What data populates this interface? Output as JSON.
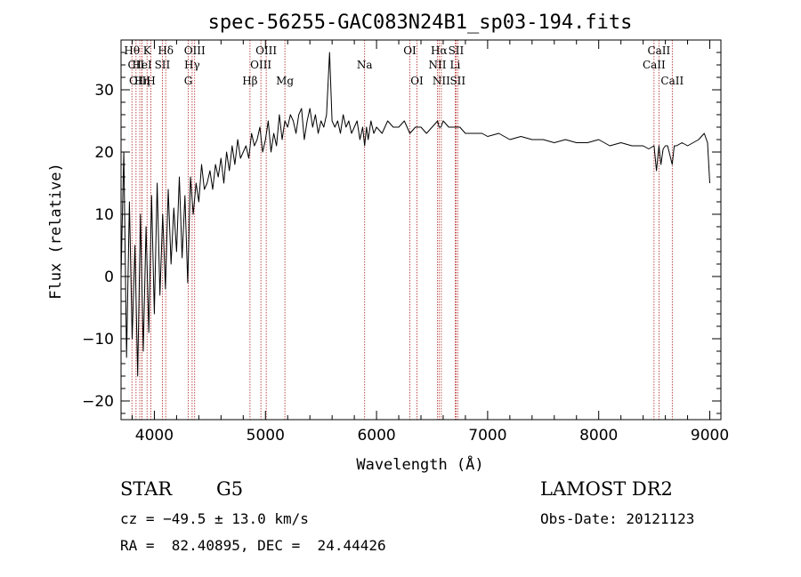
{
  "chart_data": {
    "type": "line",
    "title": "spec-56255-GAC083N24B1_sp03-194.fits",
    "xlabel": "Wavelength (Å)",
    "ylabel": "Flux (relative)",
    "xlim": [
      3700,
      9100
    ],
    "ylim": [
      -23,
      38
    ],
    "xticks": [
      4000,
      5000,
      6000,
      7000,
      8000,
      9000
    ],
    "yticks": [
      -20,
      -10,
      0,
      10,
      20,
      30
    ],
    "series": [
      {
        "name": "flux",
        "x": [
          3700,
          3725,
          3750,
          3775,
          3800,
          3825,
          3850,
          3875,
          3900,
          3925,
          3950,
          3975,
          4000,
          4025,
          4050,
          4075,
          4100,
          4125,
          4150,
          4175,
          4200,
          4225,
          4250,
          4275,
          4300,
          4325,
          4350,
          4375,
          4400,
          4425,
          4450,
          4475,
          4500,
          4525,
          4550,
          4575,
          4600,
          4625,
          4650,
          4675,
          4700,
          4725,
          4750,
          4775,
          4800,
          4825,
          4850,
          4875,
          4900,
          4925,
          4950,
          4975,
          5000,
          5025,
          5050,
          5075,
          5100,
          5125,
          5150,
          5175,
          5200,
          5225,
          5250,
          5275,
          5300,
          5325,
          5350,
          5375,
          5400,
          5425,
          5450,
          5475,
          5500,
          5525,
          5550,
          5577,
          5600,
          5625,
          5650,
          5675,
          5700,
          5725,
          5750,
          5775,
          5800,
          5825,
          5850,
          5875,
          5893,
          5910,
          5925,
          5950,
          5975,
          6000,
          6050,
          6100,
          6150,
          6200,
          6250,
          6300,
          6350,
          6400,
          6450,
          6500,
          6550,
          6563,
          6580,
          6600,
          6650,
          6700,
          6750,
          6800,
          6850,
          6900,
          6950,
          7000,
          7100,
          7200,
          7300,
          7400,
          7500,
          7600,
          7700,
          7800,
          7900,
          8000,
          8100,
          8200,
          8300,
          8400,
          8450,
          8498,
          8520,
          8542,
          8560,
          8580,
          8600,
          8620,
          8662,
          8680,
          8700,
          8750,
          8800,
          8850,
          8900,
          8950,
          8980,
          9000
        ],
        "values": [
          0,
          20,
          -13,
          12,
          -10,
          5,
          -16,
          10,
          -12,
          8,
          -9,
          13,
          -6,
          15,
          -3,
          10,
          -2,
          14,
          2,
          11,
          4,
          16,
          3,
          13,
          -1,
          16,
          10,
          15,
          12,
          18,
          14,
          15,
          17,
          14,
          18,
          16,
          19,
          15,
          20,
          17,
          21,
          18,
          22,
          19,
          20,
          21,
          19,
          23,
          21,
          22,
          24,
          20,
          22,
          25,
          20,
          23,
          21,
          26,
          22,
          25,
          24,
          26,
          25,
          23,
          26,
          27,
          22,
          25,
          27,
          24,
          26,
          23,
          25,
          24,
          26,
          36,
          25,
          24,
          25,
          23,
          26,
          24,
          25,
          23,
          24,
          25,
          22,
          24,
          21,
          24,
          22,
          25,
          23,
          24,
          23,
          25,
          24,
          24,
          25,
          23,
          24,
          24,
          23,
          24,
          25,
          24,
          24,
          25,
          24,
          24,
          24,
          23,
          23,
          23,
          23,
          22.5,
          23,
          22,
          22.5,
          22,
          22,
          21.5,
          22,
          21.5,
          21.5,
          22,
          21,
          21.5,
          21,
          21,
          20.5,
          21,
          17,
          21,
          18,
          20.5,
          21,
          21,
          18,
          21,
          21,
          21.5,
          21,
          21.5,
          22,
          23,
          21.5,
          15
        ]
      }
    ],
    "lines": [
      {
        "label": "Hθ",
        "wl": 3798,
        "row": 1
      },
      {
        "label": "CII",
        "wl": 3835,
        "row": 2
      },
      {
        "label": "OIII",
        "wl": 3869,
        "row": 3
      },
      {
        "label": "K",
        "wl": 3934,
        "row": 1
      },
      {
        "label": "HeI",
        "wl": 3889,
        "row": 2
      },
      {
        "label": "Hη",
        "wl": 3889,
        "row": 3
      },
      {
        "label": "H",
        "wl": 3969,
        "row": 3
      },
      {
        "label": "SII",
        "wl": 4072,
        "row": 2
      },
      {
        "label": "Hδ",
        "wl": 4102,
        "row": 1
      },
      {
        "label": "OIII",
        "wl": 4363,
        "row": 1
      },
      {
        "label": "Hγ",
        "wl": 4340,
        "row": 2
      },
      {
        "label": "G",
        "wl": 4305,
        "row": 3
      },
      {
        "label": "Hβ",
        "wl": 4861,
        "row": 3
      },
      {
        "label": "OIII",
        "wl": 4959,
        "row": 2
      },
      {
        "label": "OIII",
        "wl": 5007,
        "row": 1
      },
      {
        "label": "Mg",
        "wl": 5175,
        "row": 3
      },
      {
        "label": "Na",
        "wl": 5893,
        "row": 2
      },
      {
        "label": "OI",
        "wl": 6300,
        "row": 1
      },
      {
        "label": "OI",
        "wl": 6364,
        "row": 3
      },
      {
        "label": "Hα",
        "wl": 6563,
        "row": 1
      },
      {
        "label": "NII",
        "wl": 6548,
        "row": 2
      },
      {
        "label": "NII",
        "wl": 6583,
        "row": 3
      },
      {
        "label": "SII",
        "wl": 6716,
        "row": 1
      },
      {
        "label": "Li",
        "wl": 6708,
        "row": 2
      },
      {
        "label": "SII",
        "wl": 6731,
        "row": 3
      },
      {
        "label": "CaII",
        "wl": 8498,
        "row": 2
      },
      {
        "label": "CaII",
        "wl": 8542,
        "row": 1
      },
      {
        "label": "CaII",
        "wl": 8662,
        "row": 3
      }
    ]
  },
  "info": {
    "class": "STAR",
    "subclass": "G5",
    "survey": "LAMOST DR2",
    "cz": "cz = −49.5 ± 13.0 km/s",
    "obs_date": "Obs-Date: 20121123",
    "coords": "RA =  82.40895, DEC =  24.44426"
  },
  "colors": {
    "axis": "#000000",
    "spectrum": "#000000",
    "marker_lines": "#b22222"
  }
}
